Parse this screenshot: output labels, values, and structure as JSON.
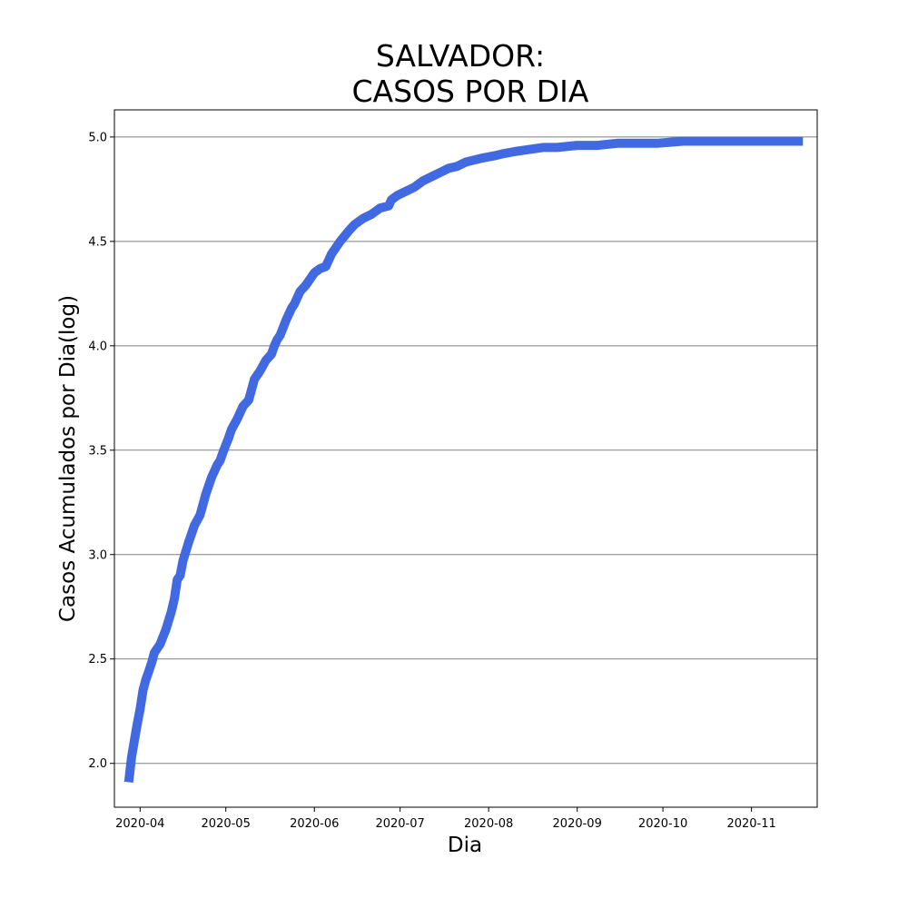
{
  "chart_data": {
    "type": "line",
    "title_lines": [
      "SALVADOR:",
      "CASOS POR DIA"
    ],
    "xlabel": "Dia",
    "ylabel": "Casos Acumulados por Dia(log)",
    "x_ticks": [
      {
        "date": "2020-04-01",
        "label": "2020-04"
      },
      {
        "date": "2020-05-01",
        "label": "2020-05"
      },
      {
        "date": "2020-06-01",
        "label": "2020-06"
      },
      {
        "date": "2020-07-01",
        "label": "2020-07"
      },
      {
        "date": "2020-08-01",
        "label": "2020-08"
      },
      {
        "date": "2020-09-01",
        "label": "2020-09"
      },
      {
        "date": "2020-10-01",
        "label": "2020-10"
      },
      {
        "date": "2020-11-01",
        "label": "2020-11"
      }
    ],
    "y_ticks": [
      {
        "value": 2.0,
        "label": "2.0"
      },
      {
        "value": 2.5,
        "label": "2.5"
      },
      {
        "value": 3.0,
        "label": "3.0"
      },
      {
        "value": 3.5,
        "label": "3.5"
      },
      {
        "value": 4.0,
        "label": "4.0"
      },
      {
        "value": 4.5,
        "label": "4.5"
      },
      {
        "value": 5.0,
        "label": "5.0"
      }
    ],
    "xlim": [
      "2020-03-23",
      "2020-11-24"
    ],
    "ylim": [
      1.79,
      5.13
    ],
    "grid": "horizontal",
    "color": "#4169E1",
    "series": [
      {
        "x": [
          "2020-03-28",
          "2020-03-29",
          "2020-03-30",
          "2020-03-31",
          "2020-04-01",
          "2020-04-02",
          "2020-04-03",
          "2020-04-04",
          "2020-04-05",
          "2020-04-06",
          "2020-04-08",
          "2020-04-10",
          "2020-04-12",
          "2020-04-13",
          "2020-04-14",
          "2020-04-15",
          "2020-04-16",
          "2020-04-18",
          "2020-04-19",
          "2020-04-20",
          "2020-04-22",
          "2020-04-24",
          "2020-04-26",
          "2020-04-28",
          "2020-04-29",
          "2020-04-30",
          "2020-05-02",
          "2020-05-03",
          "2020-05-05",
          "2020-05-07",
          "2020-05-09",
          "2020-05-11",
          "2020-05-13",
          "2020-05-15",
          "2020-05-17",
          "2020-05-18",
          "2020-05-19",
          "2020-05-20",
          "2020-05-22",
          "2020-05-24",
          "2020-05-25",
          "2020-05-27",
          "2020-05-29",
          "2020-05-31",
          "2020-06-01",
          "2020-06-03",
          "2020-06-05",
          "2020-06-07",
          "2020-06-10",
          "2020-06-13",
          "2020-06-15",
          "2020-06-18",
          "2020-06-21",
          "2020-06-24",
          "2020-06-27",
          "2020-06-28",
          "2020-06-30",
          "2020-07-03",
          "2020-07-06",
          "2020-07-09",
          "2020-07-12",
          "2020-07-15",
          "2020-07-18",
          "2020-07-21",
          "2020-07-24",
          "2020-07-27",
          "2020-07-30",
          "2020-08-03",
          "2020-08-06",
          "2020-08-10",
          "2020-08-15",
          "2020-08-20",
          "2020-08-25",
          "2020-09-01",
          "2020-09-08",
          "2020-09-15",
          "2020-09-22",
          "2020-09-29",
          "2020-10-08",
          "2020-10-20",
          "2020-11-01",
          "2020-11-19"
        ],
        "y": [
          1.91,
          2.03,
          2.11,
          2.19,
          2.26,
          2.35,
          2.4,
          2.44,
          2.48,
          2.53,
          2.57,
          2.64,
          2.73,
          2.79,
          2.88,
          2.9,
          2.97,
          3.06,
          3.1,
          3.14,
          3.19,
          3.29,
          3.37,
          3.43,
          3.45,
          3.49,
          3.56,
          3.6,
          3.65,
          3.71,
          3.74,
          3.84,
          3.88,
          3.93,
          3.96,
          4.0,
          4.03,
          4.05,
          4.12,
          4.18,
          4.2,
          4.26,
          4.29,
          4.33,
          4.35,
          4.37,
          4.38,
          4.44,
          4.5,
          4.55,
          4.58,
          4.61,
          4.63,
          4.66,
          4.67,
          4.7,
          4.72,
          4.74,
          4.76,
          4.79,
          4.81,
          4.83,
          4.85,
          4.86,
          4.88,
          4.89,
          4.9,
          4.91,
          4.92,
          4.93,
          4.94,
          4.95,
          4.95,
          4.96,
          4.96,
          4.97,
          4.97,
          4.97,
          4.98,
          4.98,
          4.98,
          4.98
        ]
      }
    ]
  }
}
